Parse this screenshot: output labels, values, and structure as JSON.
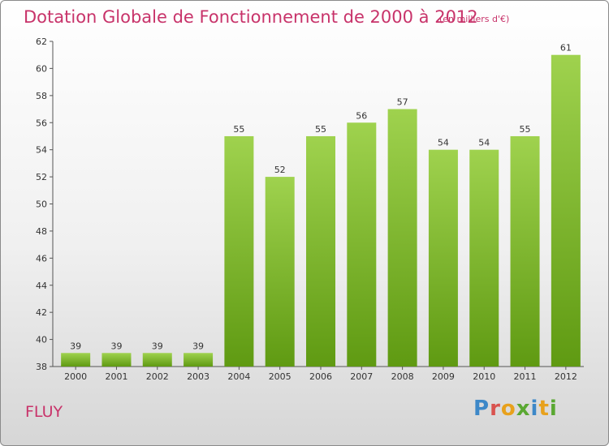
{
  "header": {
    "title": "Dotation Globale de Fonctionnement de 2000 à 2012",
    "subtitle": "(en milliers d'€)"
  },
  "footer": {
    "commune": "FLUY",
    "logo": "Proxiti"
  },
  "colors": {
    "title": "#c8336a",
    "bar_top": "#9fd24e",
    "bar_bottom": "#5f9a12",
    "axis": "#555555",
    "logo_letters": [
      "#3d88c8",
      "#d9534f",
      "#e8a11c",
      "#5aa832",
      "#3d88c8",
      "#e8a11c",
      "#5aa832"
    ]
  },
  "chart_data": {
    "type": "bar",
    "title": "Dotation Globale de Fonctionnement de 2000 à 2012",
    "subtitle": "(en milliers d'€)",
    "categories": [
      "2000",
      "2001",
      "2002",
      "2003",
      "2004",
      "2005",
      "2006",
      "2007",
      "2008",
      "2009",
      "2010",
      "2011",
      "2012"
    ],
    "values": [
      39,
      39,
      39,
      39,
      55,
      52,
      55,
      56,
      57,
      54,
      54,
      55,
      61
    ],
    "ylim": [
      38,
      62
    ],
    "yticks": [
      38,
      40,
      42,
      44,
      46,
      48,
      50,
      52,
      54,
      56,
      58,
      60,
      62
    ],
    "grid": false,
    "xlabel": "",
    "ylabel": ""
  }
}
